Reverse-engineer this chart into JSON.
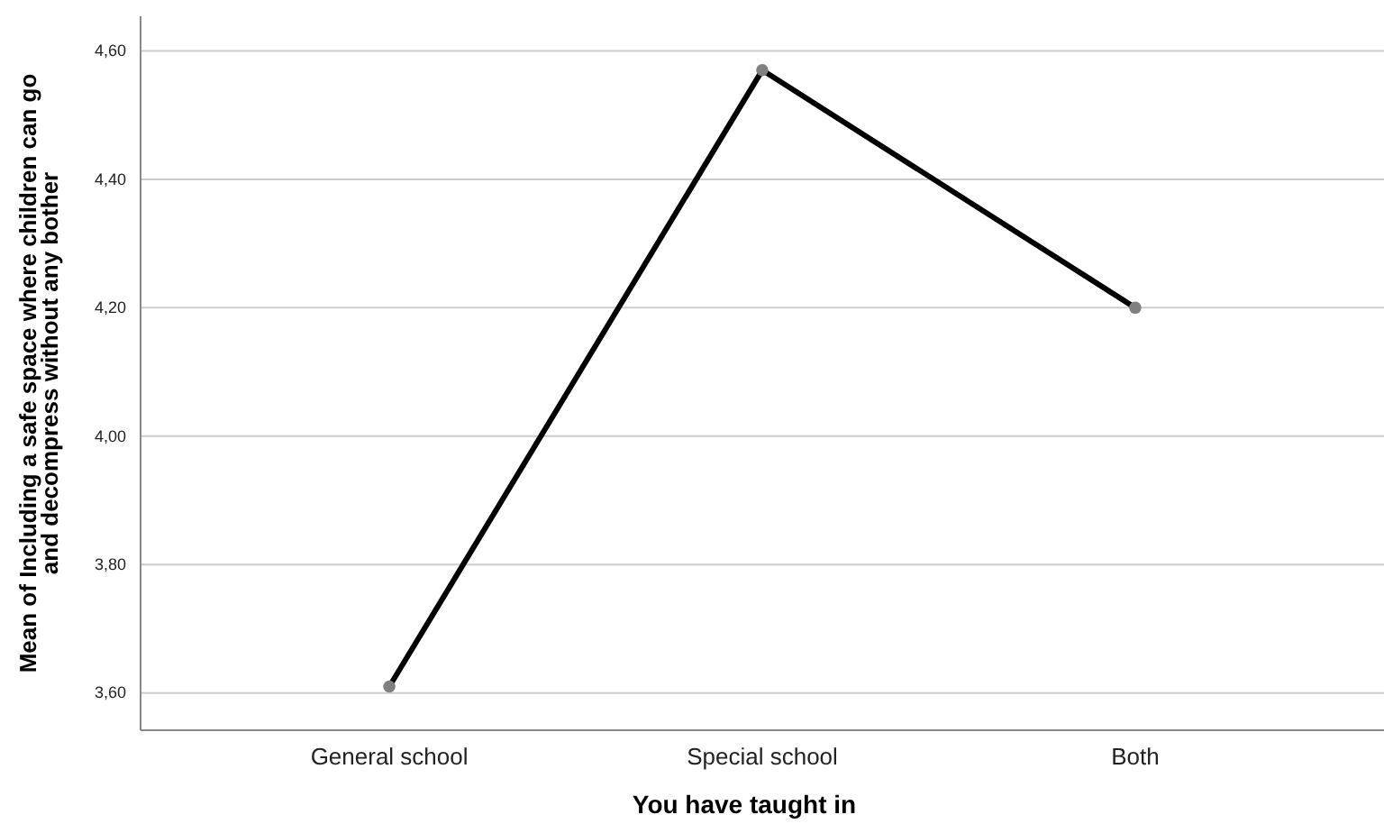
{
  "chart_data": {
    "type": "line",
    "xlabel": "You have taught in",
    "ylabel": "Mean of Including a safe space where children can go and decompress without any bother",
    "categories": [
      "General school",
      "Special school",
      "Both"
    ],
    "series": [
      {
        "color": "#000000",
        "values": [
          3.61,
          4.57,
          4.2
        ]
      }
    ],
    "ylim": [
      3.542,
      4.654
    ],
    "yticks": [
      {
        "value": 3.6,
        "label": "3,60"
      },
      {
        "value": 3.8,
        "label": "3,80"
      },
      {
        "value": 4.0,
        "label": "4,00"
      },
      {
        "value": 4.2,
        "label": "4,20"
      },
      {
        "value": 4.4,
        "label": "4,40"
      },
      {
        "value": 4.6,
        "label": "4,60"
      }
    ],
    "grid": "y",
    "marker": "circle",
    "line_style": "solid"
  }
}
